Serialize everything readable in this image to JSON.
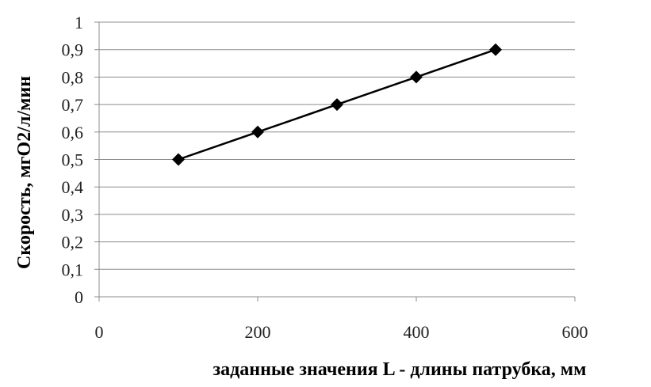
{
  "chart_data": {
    "type": "line",
    "xlabel": "заданные  значения  L - длины патрубка, мм",
    "ylabel": "Скорость, мгО2/л/мин",
    "xlim": [
      0,
      600
    ],
    "ylim": [
      0,
      1
    ],
    "x_ticks": [
      0,
      200,
      400,
      600
    ],
    "x_tick_labels": [
      "0",
      "200",
      "400",
      "600"
    ],
    "y_ticks": [
      0,
      0.1,
      0.2,
      0.3,
      0.4,
      0.5,
      0.6,
      0.7,
      0.8,
      0.9,
      1
    ],
    "y_tick_labels": [
      "0",
      "0,1",
      "0,2",
      "0,3",
      "0,4",
      "0,5",
      "0,6",
      "0,7",
      "0,8",
      "0,9",
      "1"
    ],
    "grid": "horizontal",
    "legend": "none",
    "marker": "diamond",
    "line_color": "#000000",
    "gridline_color": "#8c8c8c",
    "series": [
      {
        "x": [
          100,
          200,
          300,
          400,
          500
        ],
        "y": [
          0.5,
          0.6,
          0.7,
          0.8,
          0.9
        ]
      }
    ]
  }
}
